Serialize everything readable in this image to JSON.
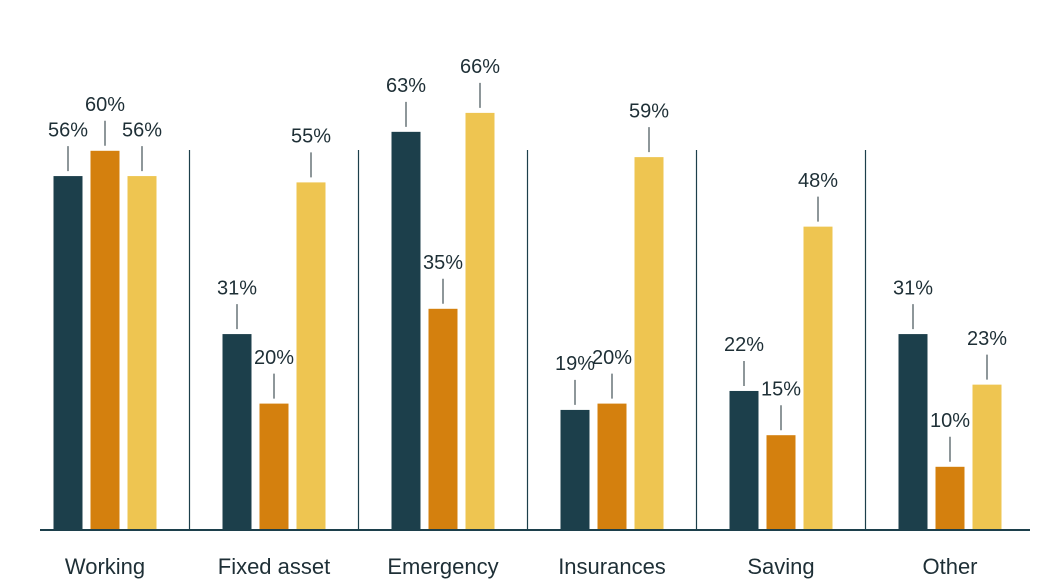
{
  "chart_data": {
    "type": "bar",
    "categories": [
      "Working",
      "Fixed asset",
      "Emergency",
      "Insurances",
      "Saving",
      "Other"
    ],
    "series": [
      {
        "color": "#1c3f4b",
        "values": [
          56,
          31,
          63,
          19,
          22,
          31
        ],
        "value_labels": [
          "56%",
          "31%",
          "63%",
          "19%",
          "22%",
          "31%"
        ]
      },
      {
        "color": "#d4800e",
        "values": [
          60,
          20,
          35,
          20,
          15,
          10
        ],
        "value_labels": [
          "60%",
          "20%",
          "35%",
          "20%",
          "15%",
          "10%"
        ]
      },
      {
        "color": "#eec551",
        "values": [
          56,
          55,
          66,
          59,
          48,
          23
        ],
        "value_labels": [
          "56%",
          "55%",
          "66%",
          "59%",
          "48%",
          "23%"
        ]
      }
    ]
  }
}
